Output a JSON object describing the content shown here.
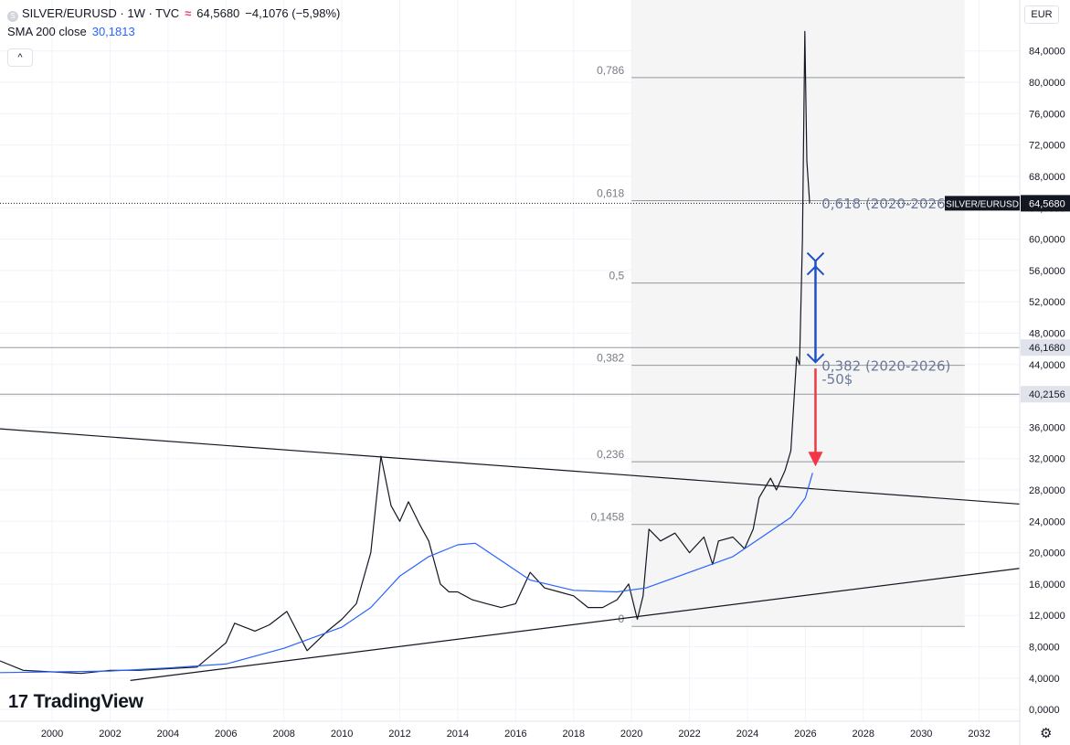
{
  "header": {
    "symbol_icon": "S",
    "title": "SILVER/EURUSD · 1W · TVC",
    "realtime_icon": "≈",
    "last": "64,5680",
    "change": "−4,1076 (−5,98%)",
    "sma_label": "SMA 200 close",
    "sma_value": "30,1813",
    "collapse_icon": "^"
  },
  "axis": {
    "currency": "EUR",
    "settings_icon": "gear-icon"
  },
  "branding": {
    "logo_mark": "17",
    "logo_text": "TradingView"
  },
  "colors": {
    "price_line": "#131722",
    "sma_line": "#2962ff",
    "fib_line": "#9598a1",
    "fib_label": "#787b86",
    "annotation_text": "#6a7a99",
    "blue_arrow": "#1e50c8",
    "red_arrow": "#f23645",
    "fib_zone": "#f5f5f5"
  },
  "chart_data": {
    "type": "line",
    "title": "SILVER/EURUSD · 1W · TVC",
    "xlabel": "",
    "ylabel": "",
    "x_ticks": [
      "2000",
      "2002",
      "2004",
      "2006",
      "2008",
      "2010",
      "2012",
      "2014",
      "2016",
      "2018",
      "2020",
      "2022",
      "2024",
      "2026",
      "2028",
      "2030",
      "2032"
    ],
    "y_ticks": [
      "0,0000",
      "4,0000",
      "8,0000",
      "12,0000",
      "16,0000",
      "20,0000",
      "24,0000",
      "28,0000",
      "32,0000",
      "36,0000",
      "40,0000",
      "44,0000",
      "48,0000",
      "52,0000",
      "56,0000",
      "60,0000",
      "64,0000",
      "68,0000",
      "72,0000",
      "76,0000",
      "80,0000",
      "84,0000"
    ],
    "xlim": [
      1998.2,
      2033.4
    ],
    "ylim": [
      -1.5,
      90.5
    ],
    "grid": true,
    "series": [
      {
        "name": "SILVER/EURUSD",
        "points": [
          [
            1998.2,
            6.2
          ],
          [
            1999.0,
            5.0
          ],
          [
            2000.0,
            4.8
          ],
          [
            2001.0,
            4.6
          ],
          [
            2002.0,
            5.0
          ],
          [
            2003.0,
            5.0
          ],
          [
            2004.0,
            5.2
          ],
          [
            2005.0,
            5.4
          ],
          [
            2006.0,
            8.5
          ],
          [
            2006.3,
            11.0
          ],
          [
            2007.0,
            10.0
          ],
          [
            2007.5,
            10.8
          ],
          [
            2008.1,
            12.5
          ],
          [
            2008.8,
            7.5
          ],
          [
            2009.5,
            10.0
          ],
          [
            2010.0,
            11.5
          ],
          [
            2010.5,
            13.5
          ],
          [
            2011.0,
            20.0
          ],
          [
            2011.35,
            32.3
          ],
          [
            2011.7,
            26.0
          ],
          [
            2012.0,
            24.0
          ],
          [
            2012.3,
            26.5
          ],
          [
            2012.7,
            23.5
          ],
          [
            2013.0,
            21.5
          ],
          [
            2013.4,
            16.0
          ],
          [
            2013.7,
            15.0
          ],
          [
            2014.0,
            15.0
          ],
          [
            2014.5,
            14.0
          ],
          [
            2015.0,
            13.5
          ],
          [
            2015.5,
            13.0
          ],
          [
            2016.0,
            13.5
          ],
          [
            2016.5,
            17.5
          ],
          [
            2017.0,
            15.5
          ],
          [
            2017.5,
            15.0
          ],
          [
            2018.0,
            14.5
          ],
          [
            2018.5,
            13.0
          ],
          [
            2019.0,
            13.0
          ],
          [
            2019.5,
            14.0
          ],
          [
            2019.9,
            16.0
          ],
          [
            2020.2,
            11.5
          ],
          [
            2020.4,
            14.5
          ],
          [
            2020.6,
            23.0
          ],
          [
            2021.0,
            21.5
          ],
          [
            2021.5,
            22.5
          ],
          [
            2022.0,
            20.0
          ],
          [
            2022.5,
            22.0
          ],
          [
            2022.8,
            18.5
          ],
          [
            2023.0,
            21.5
          ],
          [
            2023.5,
            22.0
          ],
          [
            2023.9,
            20.5
          ],
          [
            2024.2,
            23.0
          ],
          [
            2024.4,
            27.0
          ],
          [
            2024.8,
            29.5
          ],
          [
            2025.0,
            28.0
          ],
          [
            2025.3,
            30.5
          ],
          [
            2025.5,
            33.0
          ],
          [
            2025.7,
            45.0
          ],
          [
            2025.8,
            44.0
          ],
          [
            2025.9,
            60.0
          ],
          [
            2025.98,
            86.5
          ],
          [
            2026.05,
            70.0
          ],
          [
            2026.15,
            64.57
          ]
        ]
      },
      {
        "name": "SMA 200 close",
        "points": [
          [
            1998.2,
            4.7
          ],
          [
            2002.0,
            4.9
          ],
          [
            2004.0,
            5.3
          ],
          [
            2006.0,
            5.8
          ],
          [
            2008.0,
            7.8
          ],
          [
            2010.0,
            10.5
          ],
          [
            2011.0,
            13.0
          ],
          [
            2012.0,
            17.0
          ],
          [
            2013.0,
            19.5
          ],
          [
            2014.0,
            21.0
          ],
          [
            2014.6,
            21.2
          ],
          [
            2015.5,
            19.0
          ],
          [
            2016.5,
            16.5
          ],
          [
            2018.0,
            15.2
          ],
          [
            2019.5,
            15.0
          ],
          [
            2020.5,
            15.5
          ],
          [
            2022.0,
            17.5
          ],
          [
            2023.5,
            19.5
          ],
          [
            2024.5,
            22.0
          ],
          [
            2025.5,
            24.5
          ],
          [
            2026.0,
            27.0
          ],
          [
            2026.25,
            30.18
          ]
        ]
      }
    ],
    "trendlines": [
      {
        "from": [
          1998.2,
          35.8
        ],
        "to": [
          2033.4,
          26.2
        ]
      },
      {
        "from": [
          2002.7,
          3.7
        ],
        "to": [
          2033.4,
          18.0
        ]
      }
    ],
    "horizontal_levels": [
      "46,1680",
      "40,2156"
    ],
    "fibonacci": {
      "levels": [
        {
          "label": "0,786",
          "value": 80.6
        },
        {
          "label": "0,618",
          "value": 64.9
        },
        {
          "label": "0,5",
          "value": 54.4
        },
        {
          "label": "0,382",
          "value": 43.9
        },
        {
          "label": "0,236",
          "value": 31.6
        },
        {
          "label": "0,1458",
          "value": 23.6
        },
        {
          "label": "0",
          "value": 10.6
        }
      ],
      "x_range": [
        2020.0,
        2031.5
      ]
    },
    "annotations": [
      {
        "text": "0,618 (2020-2026)",
        "x": 2026.5,
        "y": 64.4
      },
      {
        "text": "0,382 (2020-2026)",
        "x": 2026.5,
        "y": 43.7
      },
      {
        "text": "-50$",
        "x": 2026.5,
        "y": 42.0
      }
    ],
    "price_labels": [
      {
        "text": "64,5680",
        "tag": "SILVER/EURUSD",
        "y": 64.57
      },
      {
        "text": "46,1680",
        "y": 46.168
      },
      {
        "text": "40,2156",
        "y": 40.2156
      }
    ]
  }
}
